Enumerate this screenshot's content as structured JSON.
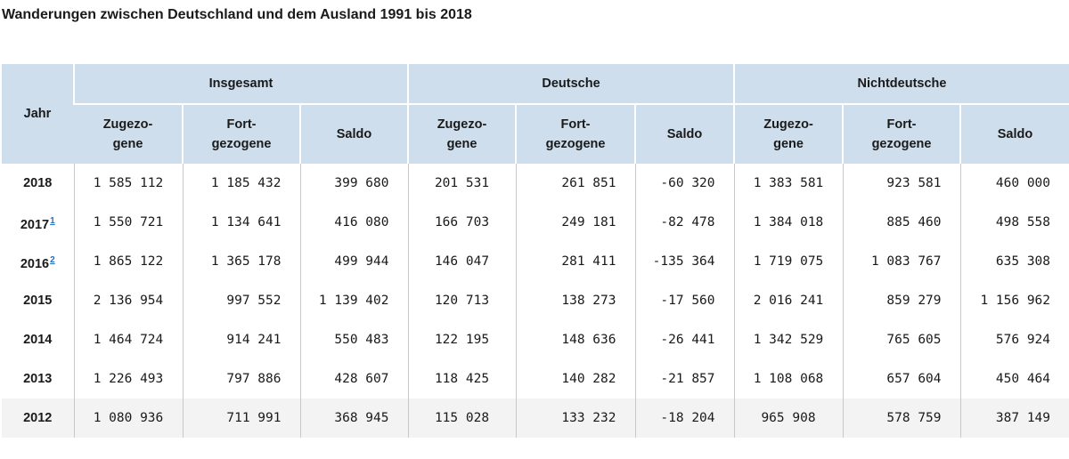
{
  "title": "Wanderungen zwischen Deutschland und dem Ausland 1991 bis 2018",
  "header": {
    "jahr": "Jahr",
    "groups": [
      "Insgesamt",
      "Deutsche",
      "Nichtdeutsche"
    ],
    "zuzug_line1": "Zugezo-",
    "zuzug_line2": "gene",
    "fortzug_line1": "Fort-",
    "fortzug_line2": "gezogene",
    "saldo": "Saldo"
  },
  "rows": [
    {
      "jahr": "2018",
      "footnote": "",
      "values": [
        "1 585 112",
        "1 185 432",
        "399 680",
        "201 531",
        "261 851",
        "-60 320",
        "1 383 581",
        "923 581",
        "460 000"
      ]
    },
    {
      "jahr": "2017",
      "footnote": "1",
      "values": [
        "1 550 721",
        "1 134 641",
        "416 080",
        "166 703",
        "249 181",
        "-82 478",
        "1 384 018",
        "885 460",
        "498 558"
      ]
    },
    {
      "jahr": "2016",
      "footnote": "2",
      "values": [
        "1 865 122",
        "1 365 178",
        "499 944",
        "146 047",
        "281 411",
        "-135 364",
        "1 719 075",
        "1 083 767",
        "635 308"
      ]
    },
    {
      "jahr": "2015",
      "footnote": "",
      "values": [
        "2 136 954",
        "997 552",
        "1 139 402",
        "120 713",
        "138 273",
        "-17 560",
        "2 016 241",
        "859 279",
        "1 156 962"
      ]
    },
    {
      "jahr": "2014",
      "footnote": "",
      "values": [
        "1 464 724",
        "914 241",
        "550 483",
        "122 195",
        "148 636",
        "-26 441",
        "1 342 529",
        "765 605",
        "576 924"
      ]
    },
    {
      "jahr": "2013",
      "footnote": "",
      "values": [
        "1 226 493",
        "797 886",
        "428 607",
        "118 425",
        "140 282",
        "-21 857",
        "1 108 068",
        "657 604",
        "450 464"
      ]
    },
    {
      "jahr": "2012",
      "footnote": "",
      "values": [
        "1 080 936",
        "711 991",
        "368 945",
        "115 028",
        "133 232",
        "-18 204",
        "965 908",
        "578 759",
        "387 149"
      ]
    }
  ],
  "colors": {
    "header_bg": "#cfdeec",
    "link": "#2a6ebb",
    "last_row_bg": "#f3f3f3"
  }
}
